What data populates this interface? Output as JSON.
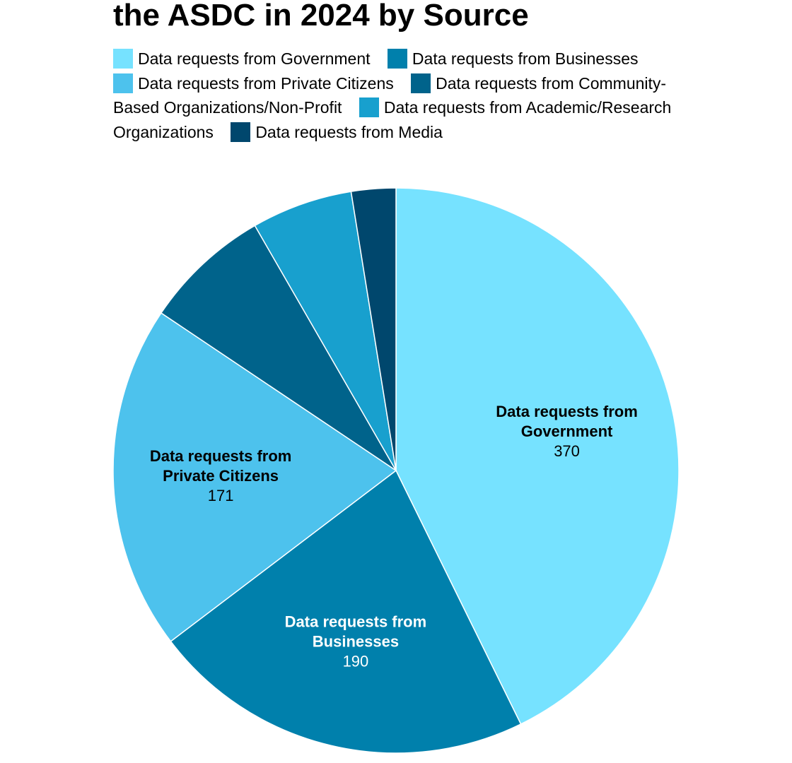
{
  "title": "the ASDC in 2024 by Source",
  "chart_data": {
    "type": "pie",
    "title": "the ASDC in 2024 by Source",
    "slices": [
      {
        "name": "Data requests from Government",
        "value": 370,
        "color": "#76E2FF",
        "label_lines": [
          "Data requests from",
          "Government"
        ],
        "value_label": "370",
        "label_color": "#000000"
      },
      {
        "name": "Data requests from Businesses",
        "value": 190,
        "color": "#0080AC",
        "label_lines": [
          "Data requests from",
          "Businesses"
        ],
        "value_label": "190",
        "label_color": "#FFFFFF"
      },
      {
        "name": "Data requests from Private Citizens",
        "value": 171,
        "color": "#4DC2ED",
        "label_lines": [
          "Data requests from",
          "Private Citizens"
        ],
        "value_label": "171",
        "label_color": "#000000"
      },
      {
        "name": "Data requests from Community-Based Organizations/Non-Profit",
        "value": 63,
        "color": "#00638B",
        "label_lines": [],
        "value_label": "",
        "label_color": "#FFFFFF"
      },
      {
        "name": "Data requests from Academic/Research Organizations",
        "value": 50,
        "color": "#18A0CE",
        "label_lines": [],
        "value_label": "",
        "label_color": "#000000"
      },
      {
        "name": "Data requests from Media",
        "value": 22,
        "color": "#00476D",
        "label_lines": [],
        "value_label": "",
        "label_color": "#FFFFFF"
      }
    ],
    "legend_position": "top"
  }
}
